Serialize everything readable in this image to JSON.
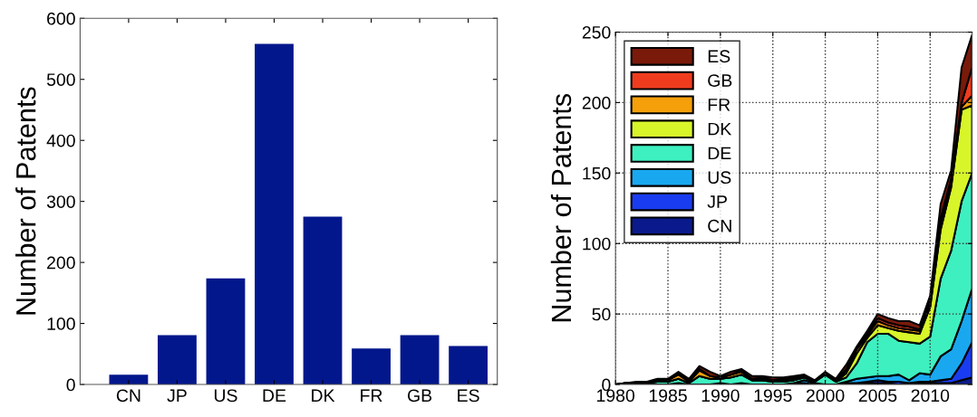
{
  "chart_data": [
    {
      "type": "bar",
      "ylabel": "Number of Patents",
      "categories": [
        "CN",
        "JP",
        "US",
        "DE",
        "DK",
        "FR",
        "GB",
        "ES"
      ],
      "values": [
        16,
        81,
        174,
        558,
        275,
        59,
        81,
        63
      ],
      "color": "#03178c",
      "ylim": [
        0,
        600
      ],
      "yticks": [
        0,
        100,
        200,
        300,
        400,
        500,
        600
      ],
      "grid": false
    },
    {
      "type": "area",
      "stacked": true,
      "ylabel": "Number of Patents",
      "xlim": [
        1980,
        2014
      ],
      "xticks": [
        1980,
        1985,
        1990,
        1995,
        2000,
        2005,
        2010
      ],
      "ylim": [
        0,
        250
      ],
      "yticks": [
        0,
        50,
        100,
        150,
        200,
        250
      ],
      "grid": true,
      "legend": "top left",
      "x": [
        1980,
        1981,
        1982,
        1983,
        1984,
        1985,
        1986,
        1987,
        1988,
        1989,
        1990,
        1991,
        1992,
        1993,
        1994,
        1995,
        1996,
        1997,
        1998,
        1999,
        2000,
        2001,
        2002,
        2003,
        2004,
        2005,
        2006,
        2007,
        2008,
        2009,
        2010,
        2011,
        2012,
        2013,
        2014
      ],
      "series": [
        {
          "name": "CN",
          "color": "#0a1a8c",
          "values": [
            0,
            0,
            0,
            0,
            0,
            0,
            0,
            0,
            0,
            0,
            0,
            0,
            0,
            0,
            0,
            0,
            0,
            0,
            0,
            0,
            0,
            0,
            0,
            0,
            1,
            1,
            1,
            0,
            0,
            1,
            1,
            1,
            1,
            3,
            5
          ]
        },
        {
          "name": "JP",
          "color": "#1a3cf0",
          "values": [
            0,
            0,
            0,
            0,
            0,
            0,
            0,
            0,
            0,
            0,
            0,
            0,
            0,
            0,
            0,
            0,
            0,
            1,
            1,
            0,
            0,
            0,
            1,
            1,
            1,
            2,
            1,
            2,
            1,
            1,
            1,
            2,
            3,
            12,
            25
          ]
        },
        {
          "name": "US",
          "color": "#19a8f0",
          "values": [
            0,
            0,
            0,
            0,
            0,
            0,
            1,
            0,
            0,
            0,
            1,
            0,
            1,
            0,
            0,
            0,
            0,
            0,
            2,
            1,
            0,
            0,
            1,
            3,
            3,
            3,
            4,
            5,
            2,
            6,
            5,
            17,
            21,
            30,
            38
          ]
        },
        {
          "name": "DE",
          "color": "#3ef0c0",
          "values": [
            0,
            1,
            1,
            1,
            2,
            2,
            3,
            1,
            6,
            4,
            3,
            5,
            6,
            3,
            3,
            2,
            2,
            2,
            2,
            1,
            7,
            2,
            3,
            11,
            25,
            30,
            30,
            24,
            27,
            21,
            27,
            55,
            70,
            85,
            82
          ]
        },
        {
          "name": "DK",
          "color": "#d8f52a",
          "values": [
            0,
            0,
            0,
            0,
            0,
            0,
            0,
            0,
            0,
            0,
            0,
            0,
            0,
            0,
            0,
            0,
            1,
            0,
            0,
            0,
            0,
            0,
            3,
            7,
            3,
            6,
            4,
            7,
            7,
            7,
            21,
            35,
            45,
            65,
            48
          ]
        },
        {
          "name": "FR",
          "color": "#f5a00a",
          "values": [
            0,
            0,
            0,
            0,
            1,
            1,
            3,
            1,
            4,
            2,
            1,
            2,
            2,
            1,
            1,
            1,
            1,
            1,
            1,
            0,
            1,
            1,
            2,
            3,
            2,
            3,
            2,
            2,
            2,
            2,
            2,
            4,
            3,
            2,
            7
          ]
        },
        {
          "name": "GB",
          "color": "#f03c1e",
          "values": [
            0,
            0,
            0,
            0,
            0,
            0,
            1,
            0,
            1,
            0,
            0,
            0,
            1,
            0,
            1,
            0,
            0,
            1,
            0,
            0,
            0,
            0,
            1,
            1,
            1,
            2,
            2,
            2,
            2,
            1,
            2,
            4,
            3,
            3,
            20
          ]
        },
        {
          "name": "ES",
          "color": "#7a1a0a",
          "values": [
            0,
            0,
            1,
            1,
            1,
            1,
            1,
            2,
            2,
            3,
            1,
            2,
            1,
            2,
            1,
            2,
            1,
            1,
            1,
            1,
            1,
            1,
            3,
            1,
            2,
            3,
            3,
            3,
            4,
            3,
            4,
            10,
            6,
            25,
            23
          ]
        }
      ]
    }
  ]
}
